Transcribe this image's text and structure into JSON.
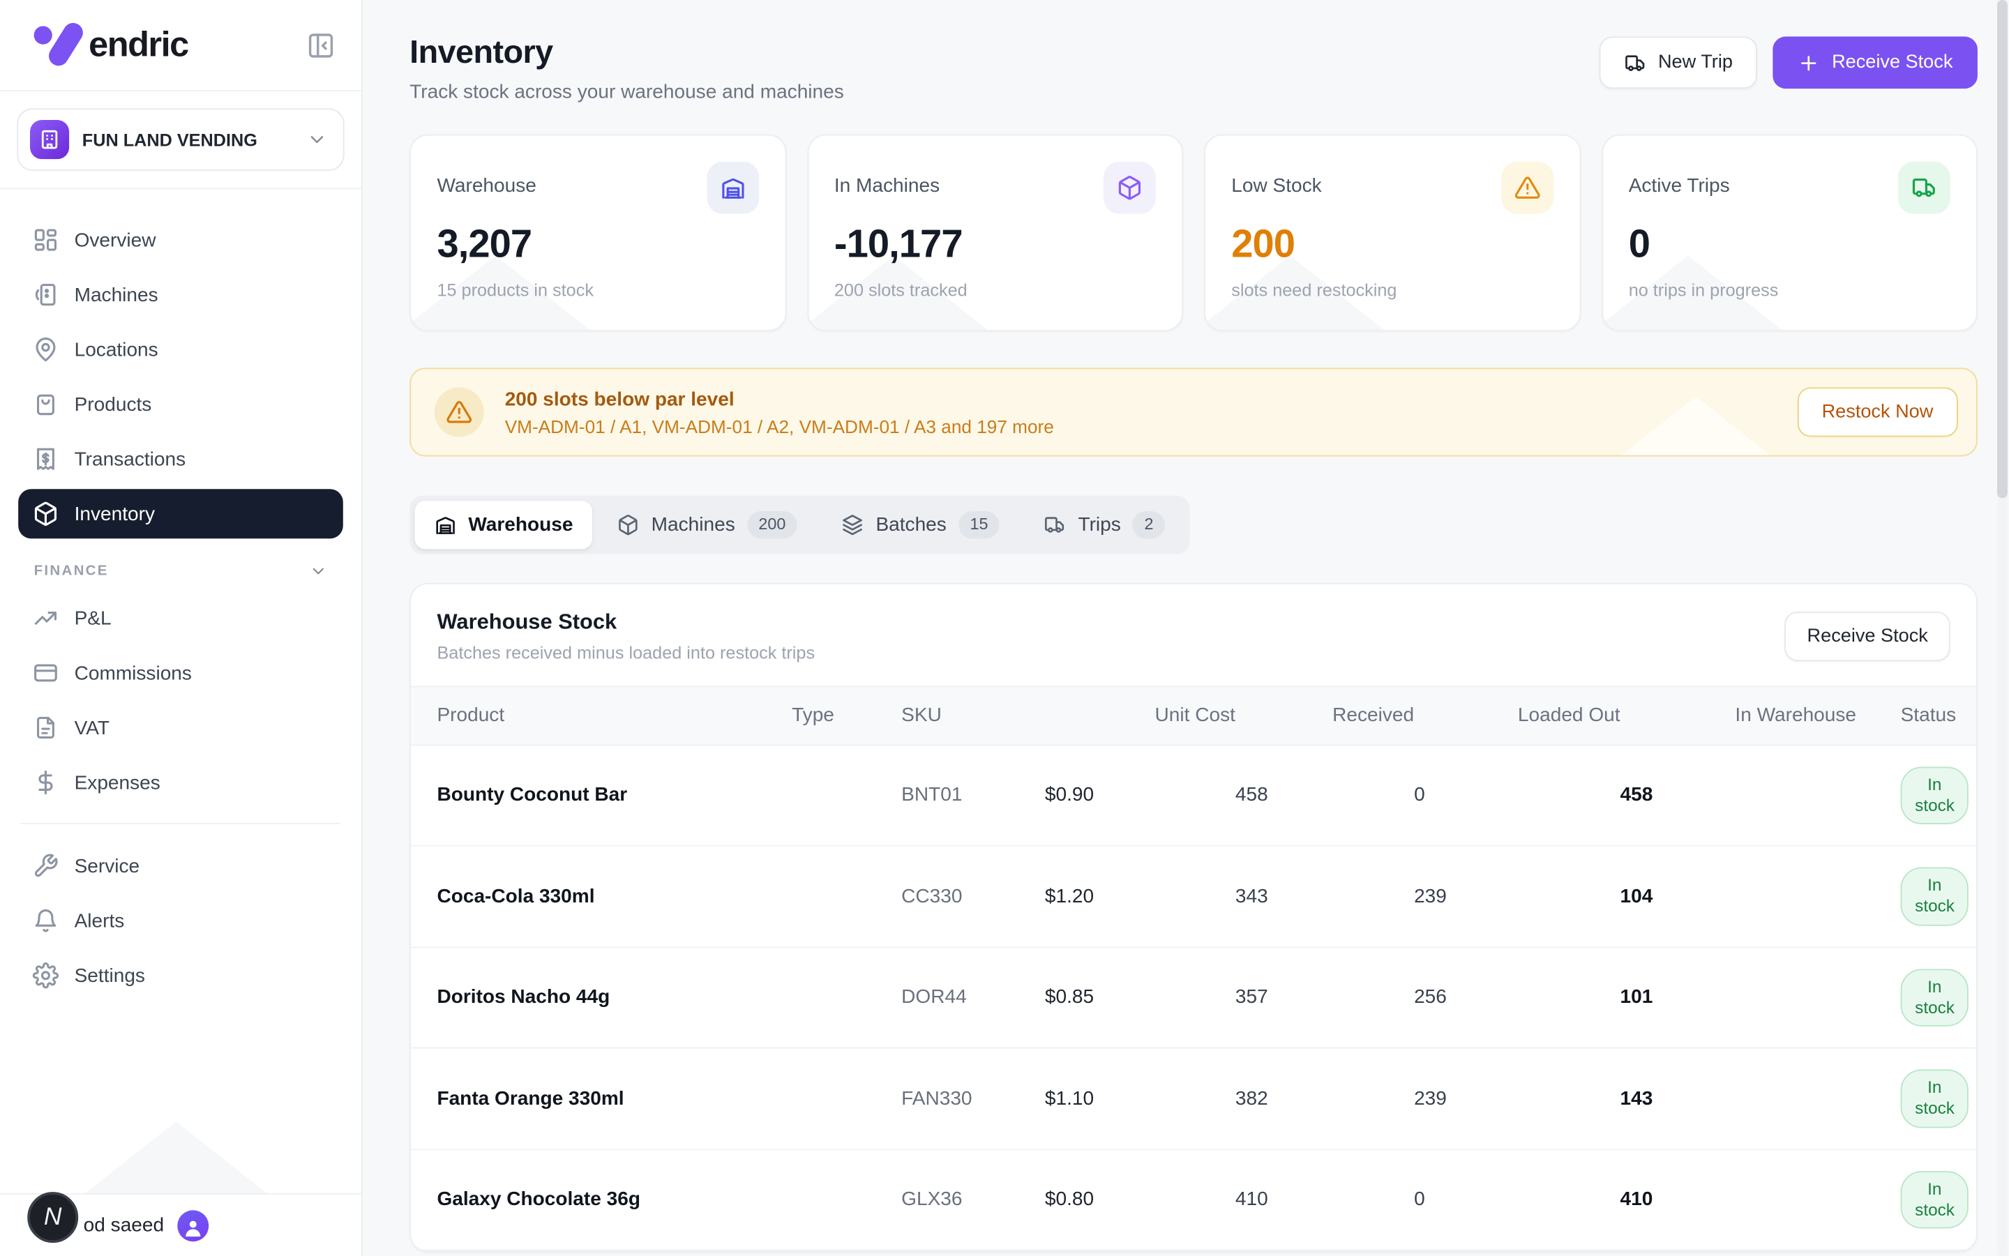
{
  "brand": {
    "name": "Vendric",
    "logo_rest": "endric"
  },
  "theme": {
    "primary": "#7b52f1",
    "warning": "#d97706",
    "warning_text": "#a35a0f",
    "success": "#16a34a",
    "active_nav_bg": "#161d2e"
  },
  "icons": {
    "collapse": "panel-left",
    "org": "building",
    "caret": "chevron-down",
    "new_trip": "truck",
    "plus": "plus",
    "alert": "alert-triangle",
    "avatar": "user"
  },
  "sidebar": {
    "org": {
      "name": "FUN LAND VENDING"
    },
    "nav": [
      {
        "label": "Overview",
        "icon": "grid"
      },
      {
        "label": "Machines",
        "icon": "vending-machine"
      },
      {
        "label": "Locations",
        "icon": "map-pin"
      },
      {
        "label": "Products",
        "icon": "shopping-bag"
      },
      {
        "label": "Transactions",
        "icon": "receipt"
      },
      {
        "label": "Inventory",
        "icon": "package",
        "active": true
      }
    ],
    "finance_label": "FINANCE",
    "finance_nav": [
      {
        "label": "P&L",
        "icon": "trending-up"
      },
      {
        "label": "Commissions",
        "icon": "credit-card"
      },
      {
        "label": "VAT",
        "icon": "file-text"
      },
      {
        "label": "Expenses",
        "icon": "dollar-sign"
      }
    ],
    "secondary_nav": [
      {
        "label": "Service",
        "icon": "wrench"
      },
      {
        "label": "Alerts",
        "icon": "bell"
      },
      {
        "label": "Settings",
        "icon": "settings"
      }
    ],
    "user": {
      "visible_name": "od saeed",
      "badge_letter": "N"
    }
  },
  "header": {
    "title": "Inventory",
    "subtitle": "Track stock across your warehouse and machines",
    "new_trip_label": "New Trip",
    "receive_stock_label": "Receive Stock"
  },
  "stats": [
    {
      "label": "Warehouse",
      "value": "3,207",
      "caption": "15 products in stock",
      "icon": "warehouse",
      "accent": "#4f52e9",
      "icon_bg": "#eef0f8"
    },
    {
      "label": "In Machines",
      "value": "-10,177",
      "caption": "200 slots tracked",
      "icon": "package",
      "accent": "#8b5cf6",
      "icon_bg": "#f2f0fb"
    },
    {
      "label": "Low Stock",
      "value": "200",
      "caption": "slots need restocking",
      "icon": "alert-triangle",
      "accent": "#e38a0d",
      "icon_bg": "#fdf6e0",
      "value_color": "#e07f05"
    },
    {
      "label": "Active Trips",
      "value": "0",
      "caption": "no trips in progress",
      "icon": "truck",
      "accent": "#16a34a",
      "icon_bg": "#e6f7ec"
    }
  ],
  "alert": {
    "title": "200 slots below par level",
    "detail": "VM-ADM-01 / A1, VM-ADM-01 / A2, VM-ADM-01 / A3 and 197 more",
    "action_label": "Restock Now"
  },
  "tabs": [
    {
      "label": "Warehouse",
      "icon": "warehouse",
      "active": true
    },
    {
      "label": "Machines",
      "icon": "package",
      "badge": "200"
    },
    {
      "label": "Batches",
      "icon": "layers",
      "badge": "15"
    },
    {
      "label": "Trips",
      "icon": "truck",
      "badge": "2"
    }
  ],
  "table": {
    "title": "Warehouse Stock",
    "subtitle": "Batches received minus loaded into restock trips",
    "action_label": "Receive Stock",
    "columns": [
      "Product",
      "Type",
      "SKU",
      "Unit Cost",
      "Received",
      "Loaded Out",
      "In Warehouse",
      "Status"
    ],
    "rows": [
      {
        "product": "Bounty Coconut Bar",
        "type": "",
        "sku": "BNT01",
        "unit_cost": "$0.90",
        "received": "458",
        "loaded_out": "0",
        "in_warehouse": "458",
        "status": "In stock"
      },
      {
        "product": "Coca-Cola 330ml",
        "type": "",
        "sku": "CC330",
        "unit_cost": "$1.20",
        "received": "343",
        "loaded_out": "239",
        "in_warehouse": "104",
        "status": "In stock"
      },
      {
        "product": "Doritos Nacho 44g",
        "type": "",
        "sku": "DOR44",
        "unit_cost": "$0.85",
        "received": "357",
        "loaded_out": "256",
        "in_warehouse": "101",
        "status": "In stock"
      },
      {
        "product": "Fanta Orange 330ml",
        "type": "",
        "sku": "FAN330",
        "unit_cost": "$1.10",
        "received": "382",
        "loaded_out": "239",
        "in_warehouse": "143",
        "status": "In stock"
      },
      {
        "product": "Galaxy Chocolate 36g",
        "type": "",
        "sku": "GLX36",
        "unit_cost": "$0.80",
        "received": "410",
        "loaded_out": "0",
        "in_warehouse": "410",
        "status": "In stock"
      }
    ]
  }
}
